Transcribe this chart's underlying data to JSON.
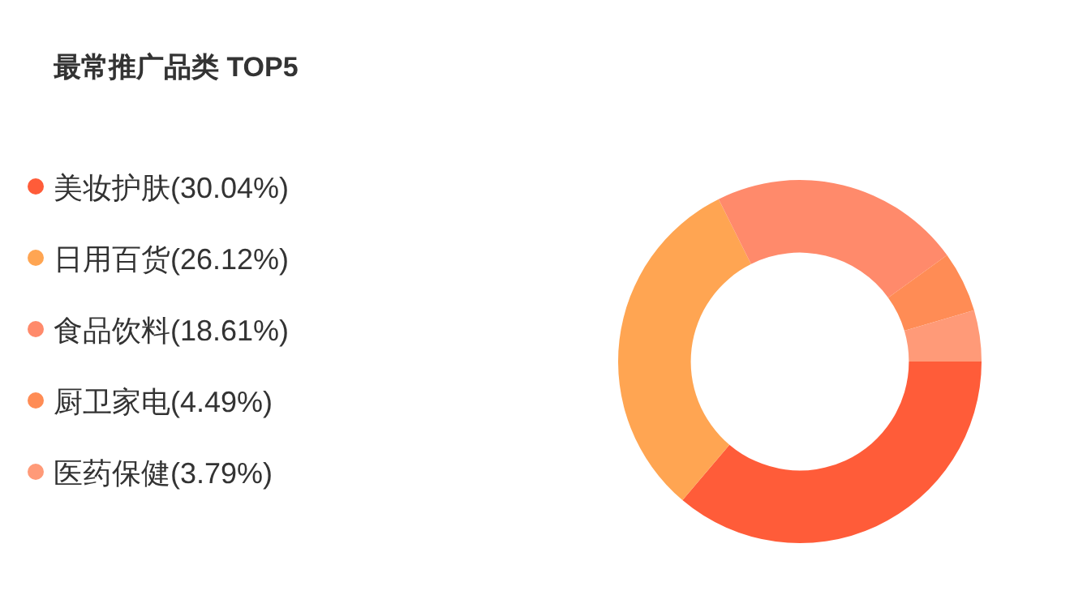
{
  "chart_data": {
    "type": "donut",
    "title": "最常推广品类 TOP5",
    "categories": [
      "美妆护肤(30.04%)",
      "日用百货(26.12%)",
      "食品饮料(18.61%)",
      "厨卫家电(4.49%)",
      "医药保健(3.79%)"
    ],
    "values": [
      30.04,
      26.12,
      18.61,
      4.49,
      3.79
    ],
    "colors": [
      "#ff5c39",
      "#ffa552",
      "#ff8a6b",
      "#ff8c55",
      "#ff9a78"
    ],
    "legend": "left"
  }
}
